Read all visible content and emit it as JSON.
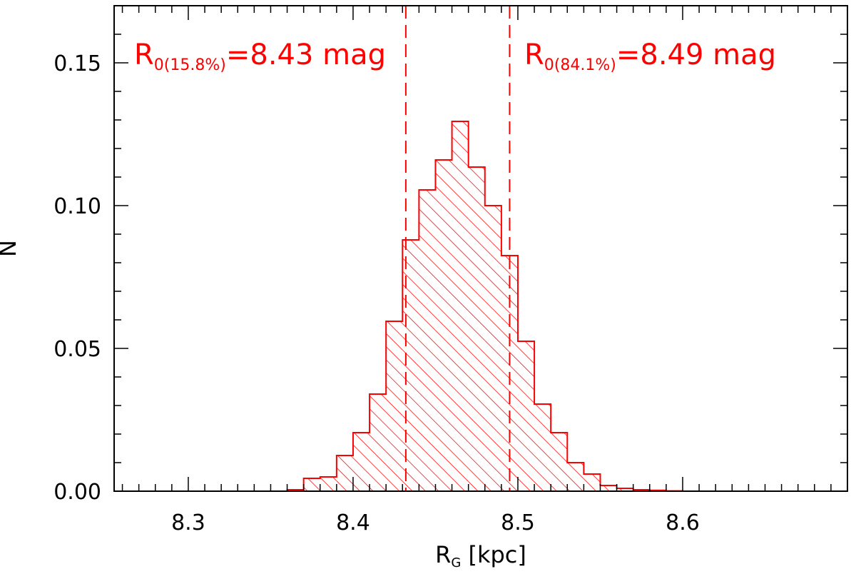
{
  "chart_data": {
    "type": "bar",
    "subtype": "histogram",
    "xlabel_main": "R",
    "xlabel_sub": "G",
    "xlabel_rest": " [kpc]",
    "ylabel": "N",
    "xlim": [
      8.255,
      8.7
    ],
    "ylim": [
      0,
      0.17
    ],
    "x_ticks": [
      8.3,
      8.4,
      8.5,
      8.6
    ],
    "x_tick_labels": [
      "8.3",
      "8.4",
      "8.5",
      "8.6"
    ],
    "x_minor_step": 0.01,
    "y_ticks": [
      0.0,
      0.05,
      0.1,
      0.15
    ],
    "y_tick_labels": [
      "0.00",
      "0.05",
      "0.10",
      "0.15"
    ],
    "y_minor_step": 0.01,
    "color": "#ff0000",
    "hatch": "diagonal",
    "bin_edges": [
      8.26,
      8.27,
      8.28,
      8.29,
      8.3,
      8.31,
      8.32,
      8.33,
      8.34,
      8.35,
      8.36,
      8.37,
      8.38,
      8.39,
      8.4,
      8.41,
      8.42,
      8.43,
      8.44,
      8.45,
      8.46,
      8.47,
      8.48,
      8.49,
      8.5,
      8.51,
      8.52,
      8.53,
      8.54,
      8.55,
      8.56,
      8.57,
      8.58,
      8.59,
      8.6,
      8.61,
      8.62,
      8.63,
      8.64,
      8.65
    ],
    "counts": [
      0,
      0,
      0,
      0,
      0,
      0,
      0,
      0,
      0,
      0,
      0.0005,
      0.0045,
      0.005,
      0.0125,
      0.0205,
      0.034,
      0.0595,
      0.088,
      0.1055,
      0.116,
      0.1295,
      0.1135,
      0.1,
      0.0825,
      0.0525,
      0.0305,
      0.0205,
      0.01,
      0.006,
      0.002,
      0.001,
      0.0005,
      0.0003,
      0.0001,
      0,
      0,
      0,
      0,
      0
    ],
    "vlines": [
      8.432,
      8.495
    ],
    "annotations": [
      {
        "main": "R",
        "sub": "0(15.8%)",
        "rest": "=8.43 mag"
      },
      {
        "main": "R",
        "sub": "0(84.1%)",
        "rest": "=8.49 mag"
      }
    ]
  }
}
